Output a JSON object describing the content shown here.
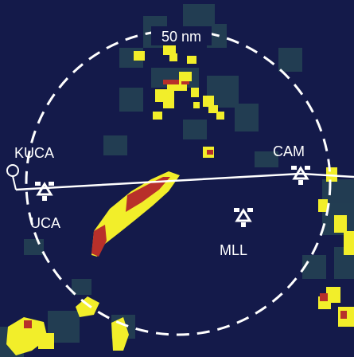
{
  "display": {
    "range_ring_label": "50 nm",
    "colors": {
      "background": "#141a4a",
      "noise": "#2e5a5a",
      "weather_level_1": "#f2ee2a",
      "weather_level_2": "#b8302a",
      "overlay": "#ffffff"
    }
  },
  "waypoints": [
    {
      "id": "KUCA",
      "label": "KUCA",
      "icon": "airport-circle-icon"
    },
    {
      "id": "UCA",
      "label": "UCA",
      "icon": "vortac-icon"
    },
    {
      "id": "CAM",
      "label": "CAM",
      "icon": "vortac-icon"
    },
    {
      "id": "MLL",
      "label": "MLL",
      "icon": "vortac-icon"
    }
  ]
}
